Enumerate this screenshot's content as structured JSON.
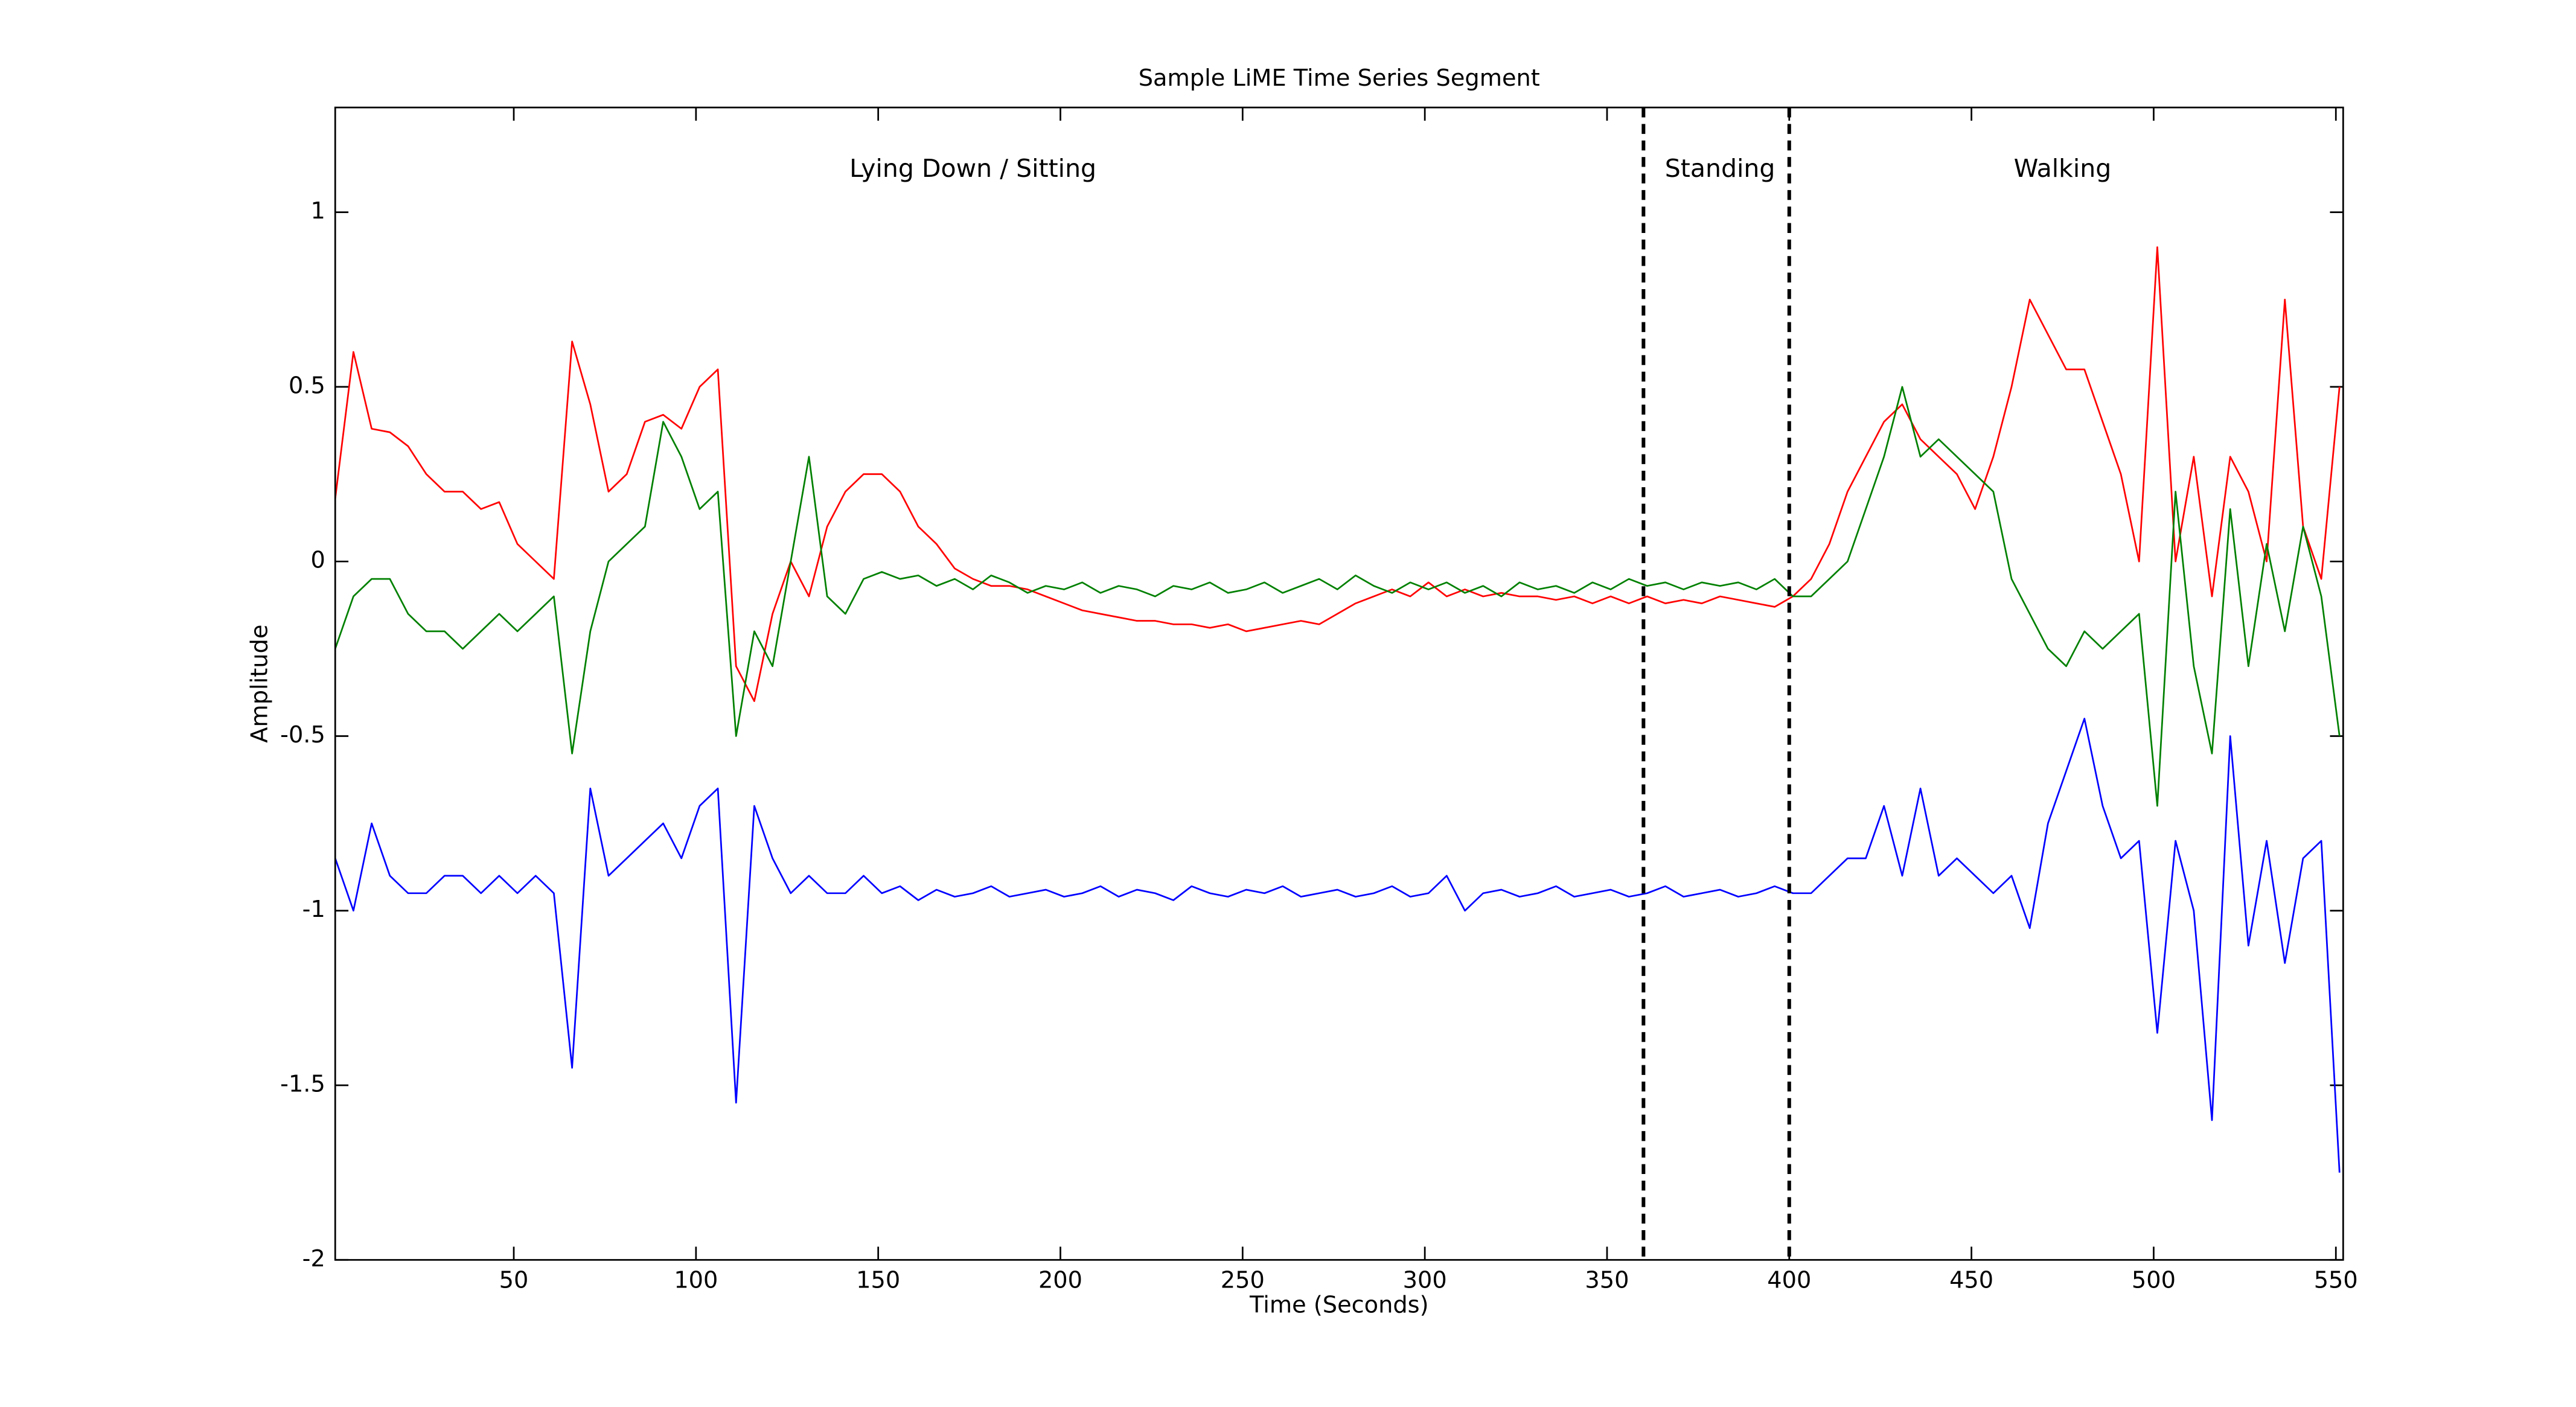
{
  "chart_data": {
    "type": "line",
    "title": "Sample LiME Time Series Segment",
    "xlabel": "Time (Seconds)",
    "ylabel": "Amplitude",
    "xlim": [
      1,
      552
    ],
    "ylim": [
      -2,
      1.3
    ],
    "xticks": [
      50,
      100,
      150,
      200,
      250,
      300,
      350,
      400,
      450,
      500,
      550
    ],
    "yticks": [
      -2,
      -1.5,
      -1,
      -0.5,
      0,
      0.5,
      1
    ],
    "grid": false,
    "x": [
      1,
      6,
      11,
      16,
      21,
      26,
      31,
      36,
      41,
      46,
      51,
      56,
      61,
      66,
      71,
      76,
      81,
      86,
      91,
      96,
      101,
      106,
      111,
      116,
      121,
      126,
      131,
      136,
      141,
      146,
      151,
      156,
      161,
      166,
      171,
      176,
      181,
      186,
      191,
      196,
      201,
      206,
      211,
      216,
      221,
      226,
      231,
      236,
      241,
      246,
      251,
      256,
      261,
      266,
      271,
      276,
      281,
      286,
      291,
      296,
      301,
      306,
      311,
      316,
      321,
      326,
      331,
      336,
      341,
      346,
      351,
      356,
      361,
      366,
      371,
      376,
      381,
      386,
      391,
      396,
      401,
      406,
      411,
      416,
      421,
      426,
      431,
      436,
      441,
      446,
      451,
      456,
      461,
      466,
      471,
      476,
      481,
      486,
      491,
      496,
      501,
      506,
      511,
      516,
      521,
      526,
      531,
      536,
      541,
      546,
      551
    ],
    "series": [
      {
        "color": "#ff0000",
        "values": [
          0.18,
          0.6,
          0.38,
          0.37,
          0.33,
          0.25,
          0.2,
          0.2,
          0.15,
          0.17,
          0.05,
          0.0,
          -0.05,
          0.63,
          0.45,
          0.2,
          0.25,
          0.4,
          0.42,
          0.38,
          0.5,
          0.55,
          -0.3,
          -0.4,
          -0.15,
          0.0,
          -0.1,
          0.1,
          0.2,
          0.25,
          0.25,
          0.2,
          0.1,
          0.05,
          -0.02,
          -0.05,
          -0.07,
          -0.07,
          -0.08,
          -0.1,
          -0.12,
          -0.14,
          -0.15,
          -0.16,
          -0.17,
          -0.17,
          -0.18,
          -0.18,
          -0.19,
          -0.18,
          -0.2,
          -0.19,
          -0.18,
          -0.17,
          -0.18,
          -0.15,
          -0.12,
          -0.1,
          -0.08,
          -0.1,
          -0.06,
          -0.1,
          -0.08,
          -0.1,
          -0.09,
          -0.1,
          -0.1,
          -0.11,
          -0.1,
          -0.12,
          -0.1,
          -0.12,
          -0.1,
          -0.12,
          -0.11,
          -0.12,
          -0.1,
          -0.11,
          -0.12,
          -0.13,
          -0.1,
          -0.05,
          0.05,
          0.2,
          0.3,
          0.4,
          0.45,
          0.35,
          0.3,
          0.25,
          0.15,
          0.3,
          0.5,
          0.75,
          0.65,
          0.55,
          0.55,
          0.4,
          0.25,
          0.0,
          0.9,
          0.0,
          0.3,
          -0.1,
          0.3,
          0.2,
          0.0,
          0.75,
          0.1,
          -0.05,
          0.5
        ]
      },
      {
        "color": "#008000",
        "values": [
          -0.25,
          -0.1,
          -0.05,
          -0.05,
          -0.15,
          -0.2,
          -0.2,
          -0.25,
          -0.2,
          -0.15,
          -0.2,
          -0.15,
          -0.1,
          -0.55,
          -0.2,
          0.0,
          0.05,
          0.1,
          0.4,
          0.3,
          0.15,
          0.2,
          -0.5,
          -0.2,
          -0.3,
          0.0,
          0.3,
          -0.1,
          -0.15,
          -0.05,
          -0.03,
          -0.05,
          -0.04,
          -0.07,
          -0.05,
          -0.08,
          -0.04,
          -0.06,
          -0.09,
          -0.07,
          -0.08,
          -0.06,
          -0.09,
          -0.07,
          -0.08,
          -0.1,
          -0.07,
          -0.08,
          -0.06,
          -0.09,
          -0.08,
          -0.06,
          -0.09,
          -0.07,
          -0.05,
          -0.08,
          -0.04,
          -0.07,
          -0.09,
          -0.06,
          -0.08,
          -0.06,
          -0.09,
          -0.07,
          -0.1,
          -0.06,
          -0.08,
          -0.07,
          -0.09,
          -0.06,
          -0.08,
          -0.05,
          -0.07,
          -0.06,
          -0.08,
          -0.06,
          -0.07,
          -0.06,
          -0.08,
          -0.05,
          -0.1,
          -0.1,
          -0.05,
          0.0,
          0.15,
          0.3,
          0.5,
          0.3,
          0.35,
          0.3,
          0.25,
          0.2,
          -0.05,
          -0.15,
          -0.25,
          -0.3,
          -0.2,
          -0.25,
          -0.2,
          -0.15,
          -0.7,
          0.2,
          -0.3,
          -0.55,
          0.15,
          -0.3,
          0.05,
          -0.2,
          0.1,
          -0.1,
          -0.5
        ]
      },
      {
        "color": "#0000ff",
        "values": [
          -0.85,
          -1.0,
          -0.75,
          -0.9,
          -0.95,
          -0.95,
          -0.9,
          -0.9,
          -0.95,
          -0.9,
          -0.95,
          -0.9,
          -0.95,
          -1.45,
          -0.65,
          -0.9,
          -0.85,
          -0.8,
          -0.75,
          -0.85,
          -0.7,
          -0.65,
          -1.55,
          -0.7,
          -0.85,
          -0.95,
          -0.9,
          -0.95,
          -0.95,
          -0.9,
          -0.95,
          -0.93,
          -0.97,
          -0.94,
          -0.96,
          -0.95,
          -0.93,
          -0.96,
          -0.95,
          -0.94,
          -0.96,
          -0.95,
          -0.93,
          -0.96,
          -0.94,
          -0.95,
          -0.97,
          -0.93,
          -0.95,
          -0.96,
          -0.94,
          -0.95,
          -0.93,
          -0.96,
          -0.95,
          -0.94,
          -0.96,
          -0.95,
          -0.93,
          -0.96,
          -0.95,
          -0.9,
          -1.0,
          -0.95,
          -0.94,
          -0.96,
          -0.95,
          -0.93,
          -0.96,
          -0.95,
          -0.94,
          -0.96,
          -0.95,
          -0.93,
          -0.96,
          -0.95,
          -0.94,
          -0.96,
          -0.95,
          -0.93,
          -0.95,
          -0.95,
          -0.9,
          -0.85,
          -0.85,
          -0.7,
          -0.9,
          -0.65,
          -0.9,
          -0.85,
          -0.9,
          -0.95,
          -0.9,
          -1.05,
          -0.75,
          -0.6,
          -0.45,
          -0.7,
          -0.85,
          -0.8,
          -1.35,
          -0.8,
          -1.0,
          -1.6,
          -0.5,
          -1.1,
          -0.8,
          -1.15,
          -0.85,
          -0.8,
          -1.75
        ]
      }
    ],
    "vlines": [
      360,
      400
    ],
    "annotations": [
      {
        "text": "Lying Down / Sitting",
        "x": 176,
        "y": 1.12
      },
      {
        "text": "Standing",
        "x": 381,
        "y": 1.12
      },
      {
        "text": "Walking",
        "x": 475,
        "y": 1.12
      }
    ]
  }
}
